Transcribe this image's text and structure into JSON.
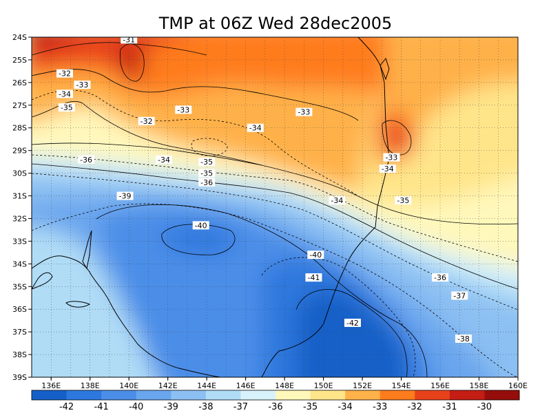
{
  "title": "TMP at 06Z Wed 28dec2005",
  "map": {
    "lon_range": [
      135,
      160
    ],
    "lat_range": [
      -39,
      -24
    ],
    "x_ticks": [
      "136E",
      "138E",
      "140E",
      "142E",
      "144E",
      "146E",
      "148E",
      "150E",
      "152E",
      "154E",
      "156E",
      "158E",
      "160E"
    ],
    "y_ticks": [
      "24S",
      "25S",
      "26S",
      "27S",
      "28S",
      "29S",
      "30S",
      "31S",
      "32S",
      "33S",
      "34S",
      "35S",
      "36S",
      "37S",
      "38S",
      "39S"
    ],
    "grid": "dotted"
  },
  "contour_labels": [
    {
      "text": "-31",
      "lon": 140.0,
      "lat": -24.1
    },
    {
      "text": "-32",
      "lon": 136.7,
      "lat": -25.6
    },
    {
      "text": "-33",
      "lon": 137.6,
      "lat": -26.1
    },
    {
      "text": "-34",
      "lon": 136.7,
      "lat": -26.5
    },
    {
      "text": "-35",
      "lon": 136.8,
      "lat": -27.1
    },
    {
      "text": "-32",
      "lon": 140.9,
      "lat": -27.7
    },
    {
      "text": "-33",
      "lon": 142.8,
      "lat": -27.2
    },
    {
      "text": "-33",
      "lon": 149.0,
      "lat": -27.3
    },
    {
      "text": "-34",
      "lon": 146.5,
      "lat": -28.0
    },
    {
      "text": "-36",
      "lon": 137.8,
      "lat": -29.4
    },
    {
      "text": "-34",
      "lon": 141.8,
      "lat": -29.4
    },
    {
      "text": "-35",
      "lon": 144.0,
      "lat": -29.5
    },
    {
      "text": "-35",
      "lon": 144.0,
      "lat": -30.0
    },
    {
      "text": "-36",
      "lon": 144.0,
      "lat": -30.4
    },
    {
      "text": "-33",
      "lon": 153.5,
      "lat": -29.3
    },
    {
      "text": "-34",
      "lon": 153.3,
      "lat": -29.8
    },
    {
      "text": "-39",
      "lon": 139.8,
      "lat": -31.0
    },
    {
      "text": "-34",
      "lon": 150.7,
      "lat": -31.2
    },
    {
      "text": "-35",
      "lon": 154.1,
      "lat": -31.2
    },
    {
      "text": "-40",
      "lon": 143.7,
      "lat": -32.3
    },
    {
      "text": "-40",
      "lon": 149.6,
      "lat": -33.6
    },
    {
      "text": "-41",
      "lon": 149.5,
      "lat": -34.6
    },
    {
      "text": "-36",
      "lon": 156.0,
      "lat": -34.6
    },
    {
      "text": "-37",
      "lon": 157.0,
      "lat": -35.4
    },
    {
      "text": "-42",
      "lon": 151.5,
      "lat": -36.6
    },
    {
      "text": "-38",
      "lon": 157.2,
      "lat": -37.3
    }
  ],
  "colorbar": {
    "labels": [
      "-42",
      "-41",
      "-40",
      "-39",
      "-38",
      "-37",
      "-36",
      "-35",
      "-34",
      "-33",
      "-32",
      "-31",
      "-30"
    ],
    "colors": [
      "#1560c8",
      "#2d78de",
      "#4b8ee8",
      "#6aa6ee",
      "#8cc0f3",
      "#b0dcf6",
      "#d8f2fb",
      "#fff8bb",
      "#ffe58a",
      "#ffb14a",
      "#ff7c1c",
      "#e8421b",
      "#c41d14",
      "#960e0b"
    ]
  }
}
